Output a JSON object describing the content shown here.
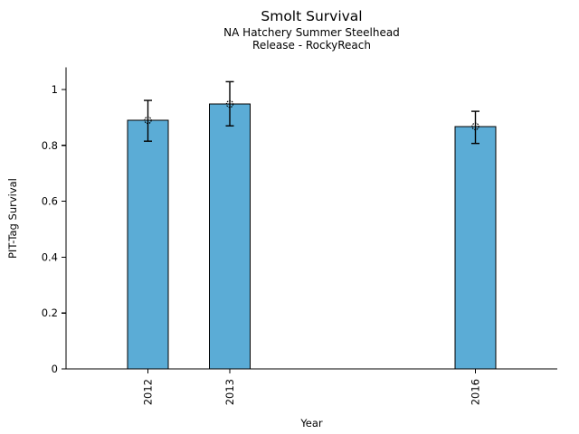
{
  "chart_data": {
    "type": "bar",
    "title": "Smolt Survival",
    "subtitle": [
      "NA Hatchery Summer Steelhead",
      "Release - RockyReach"
    ],
    "xlabel": "Year",
    "ylabel": "PIT-Tag Survival",
    "categories": [
      "2012",
      "2013",
      "2016"
    ],
    "x": [
      2012,
      2013,
      2016
    ],
    "values": [
      0.89,
      0.948,
      0.868
    ],
    "error_low": [
      0.815,
      0.87,
      0.807
    ],
    "error_high": [
      0.961,
      1.028,
      0.922
    ],
    "marker": "open-circle",
    "bar_width_years": 0.5,
    "xlim": [
      2011,
      2017
    ],
    "ylim": [
      0,
      1.08
    ],
    "yticks": [
      0,
      0.2,
      0.4,
      0.6,
      0.8,
      1
    ],
    "ytick_labels": [
      "0",
      "0.2",
      "0.4",
      "0.6",
      "0.8",
      "1"
    ],
    "xtick_labels": [
      "2012",
      "2013",
      "2016"
    ],
    "grid": false,
    "legend": "none",
    "colors": {
      "bar_fill": "#5bacd6",
      "bar_edge": "#000000",
      "error_bar": "#000000",
      "marker_edge": "#000000",
      "axis": "#000000",
      "text": "#000000",
      "background": "#ffffff"
    }
  }
}
